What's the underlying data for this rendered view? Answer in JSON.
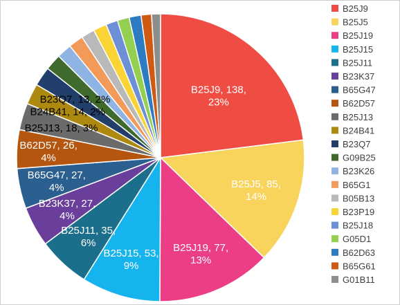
{
  "chart_data": {
    "type": "pie",
    "slices": [
      {
        "name": "B25J9",
        "value": 138,
        "pct_label": "23%",
        "color": "#ef4d43"
      },
      {
        "name": "B25J5",
        "value": 85,
        "pct_label": "14%",
        "color": "#f8d45c"
      },
      {
        "name": "B25J19",
        "value": 77,
        "pct_label": "13%",
        "color": "#ec3d87"
      },
      {
        "name": "B25J15",
        "value": 53,
        "pct_label": "9%",
        "color": "#16b4ee"
      },
      {
        "name": "B25J11",
        "value": 35,
        "pct_label": "6%",
        "color": "#1c6f8a"
      },
      {
        "name": "B23K37",
        "value": 27,
        "pct_label": "4%",
        "color": "#6a3f9c"
      },
      {
        "name": "B65G47",
        "value": 27,
        "pct_label": "4%",
        "color": "#2b5f90"
      },
      {
        "name": "B62D57",
        "value": 26,
        "pct_label": "4%",
        "color": "#b55610"
      },
      {
        "name": "B25J13",
        "value": 18,
        "pct_label": "3%",
        "color": "#6b6b6b"
      },
      {
        "name": "B24B41",
        "value": 14,
        "pct_label": "2%",
        "color": "#ad8a0f"
      },
      {
        "name": "B23Q7",
        "value": 13,
        "pct_label": "2%",
        "color": "#223e6b"
      },
      {
        "name": "G09B25",
        "value": 11,
        "color": "#3f6a2c"
      },
      {
        "name": "B23K26",
        "value": 10,
        "color": "#8fb3e3"
      },
      {
        "name": "B65G1",
        "value": 10,
        "color": "#f29a5a"
      },
      {
        "name": "B05B13",
        "value": 9,
        "color": "#b9b9b9"
      },
      {
        "name": "B23P19",
        "value": 9,
        "color": "#fad335"
      },
      {
        "name": "B25J18",
        "value": 8,
        "color": "#6c8fd6"
      },
      {
        "name": "G05D1",
        "value": 8,
        "color": "#93cf50"
      },
      {
        "name": "B62D63",
        "value": 8,
        "color": "#2d7bc1"
      },
      {
        "name": "B65G61",
        "value": 7,
        "color": "#cf5a14"
      },
      {
        "name": "G01B11",
        "value": 6,
        "color": "#8d8d8d"
      }
    ],
    "title": "",
    "legend_position": "right"
  }
}
